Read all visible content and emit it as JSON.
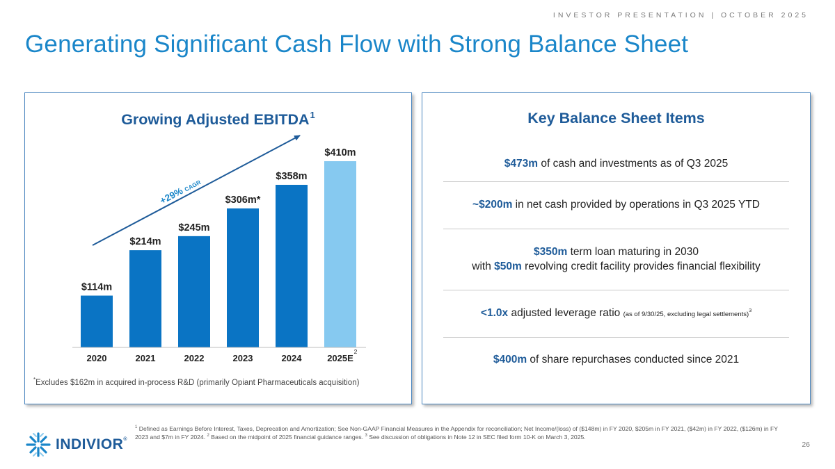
{
  "header_tag": "INVESTOR PRESENTATION | OCTOBER 2025",
  "page_title": "Generating Significant Cash Flow with Strong Balance Sheet",
  "left_panel": {
    "title": "Growing Adjusted EBITDA",
    "title_sup": "1",
    "footnote": "Excludes $162m in acquired in-process R&D (primarily Opiant Pharmaceuticals acquisition)",
    "footnote_star": "*"
  },
  "chart_data": {
    "type": "bar",
    "title": "Growing Adjusted EBITDA",
    "categories": [
      "2020",
      "2021",
      "2022",
      "2023",
      "2024",
      "2025E"
    ],
    "values": [
      114,
      214,
      245,
      306,
      358,
      410
    ],
    "labels": [
      "$114m",
      "$214m",
      "$245m",
      "$306m*",
      "$358m",
      "$410m"
    ],
    "units": "$m",
    "category_sup": [
      "",
      "",
      "",
      "",
      "",
      "2"
    ],
    "bar_colors": [
      "#0a74c4",
      "#0a74c4",
      "#0a74c4",
      "#0a74c4",
      "#0a74c4",
      "#86c9f0"
    ],
    "annotation": {
      "text": "+29%",
      "suffix": "CAGR"
    },
    "ylim": [
      0,
      410
    ],
    "xlabel": "",
    "ylabel": "",
    "grid": false,
    "legend": "none"
  },
  "right_panel": {
    "title": "Key Balance Sheet Items",
    "items": [
      {
        "hl": "$473m",
        "text": " of cash and investments as of Q3 2025"
      },
      {
        "hl": "~$200m",
        "text": " in net cash provided by operations in Q3 2025 YTD"
      },
      {
        "hl": "$350m",
        "text": " term loan maturing in 2030",
        "line2_pre": "with ",
        "line2_hl": "$50m",
        "line2_text": " revolving credit facility provides financial flexibility"
      },
      {
        "hl": "<1.0x",
        "text": " adjusted leverage ratio ",
        "small": "(as of 9/30/25, excluding legal settlements)",
        "sup": "3"
      },
      {
        "hl": "$400m",
        "text": " of share repurchases conducted since 2021"
      }
    ]
  },
  "logo": {
    "name": "INDIVIOR",
    "mark": "®"
  },
  "footnotes": {
    "n1": "1",
    "t1": " Defined as Earnings Before Interest, Taxes, Deprecation and Amortization; See Non-GAAP Financial Measures in the Appendix for reconciliation; Net Income/(loss) of ($148m) in FY 2020, $205m in FY 2021, ($42m) in FY 2022, ($126m) in FY 2023 and $7m in FY 2024. ",
    "n2": "2",
    "t2": " Based on the midpoint of 2025 financial guidance ranges. ",
    "n3": "3",
    "t3": " See discussion of obligations in Note 12 in SEC filed form 10-K on March 3, 2025."
  },
  "page_number": "26",
  "colors": {
    "title_blue": "#1a86c9",
    "dark_blue": "#1e5b99",
    "bar_blue": "#0a74c4",
    "bar_light": "#86c9f0"
  }
}
